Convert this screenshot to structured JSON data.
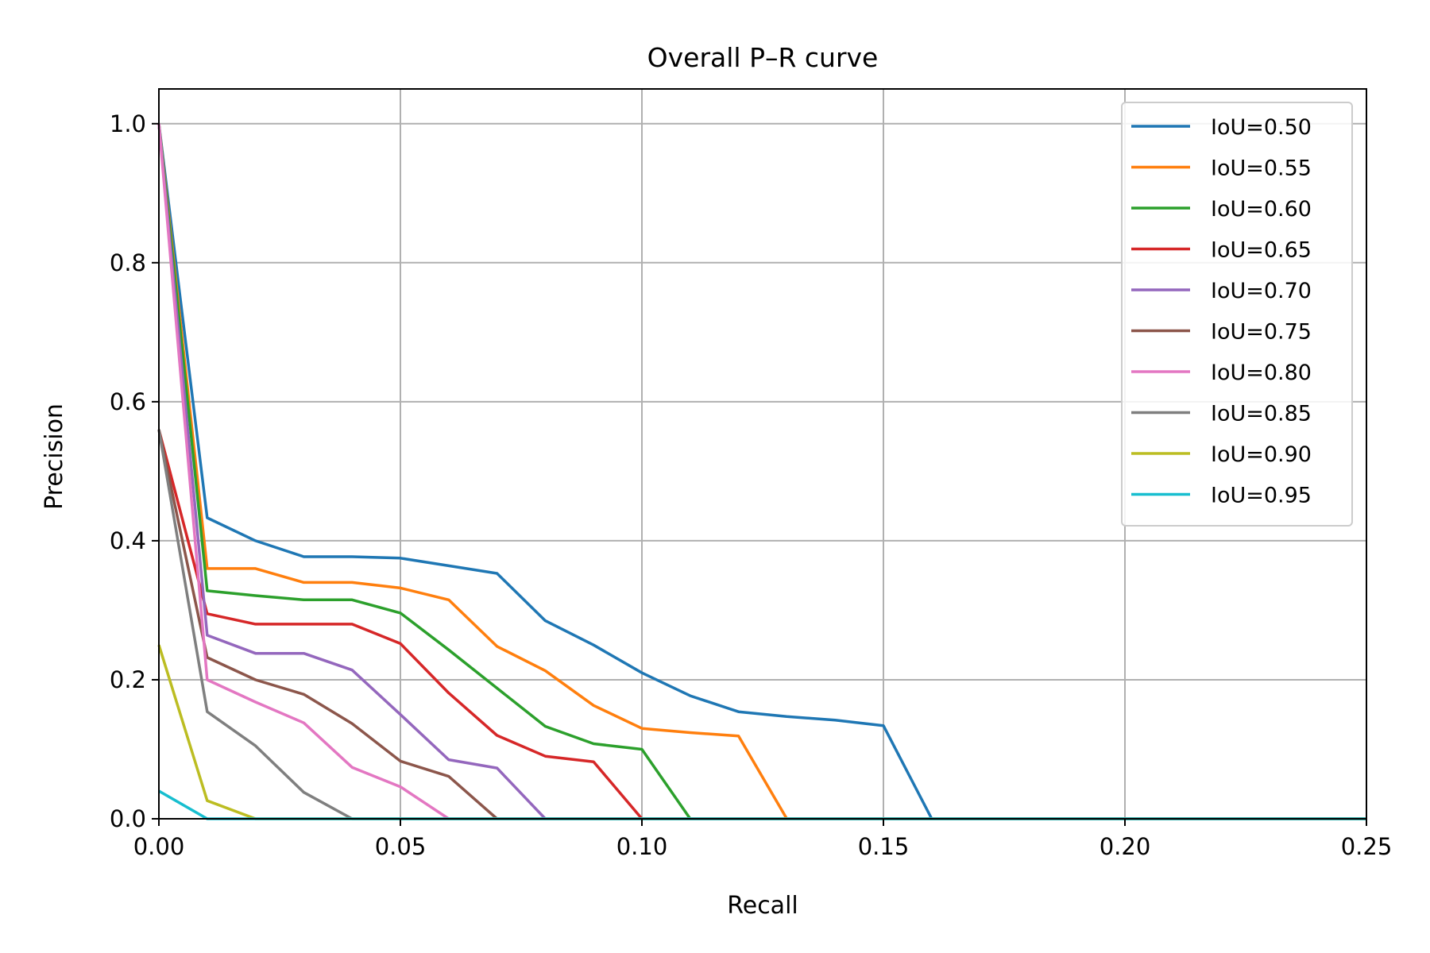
{
  "chart_data": {
    "type": "line",
    "title": "Overall P–R curve",
    "xlabel": "Recall",
    "ylabel": "Precision",
    "xlim": [
      0.0,
      0.25
    ],
    "ylim": [
      0.0,
      1.05
    ],
    "xticks": [
      "0.00",
      "0.05",
      "0.10",
      "0.15",
      "0.20",
      "0.25"
    ],
    "yticks": [
      "0.0",
      "0.2",
      "0.4",
      "0.6",
      "0.8",
      "1.0"
    ],
    "grid": true,
    "legend_position": "top-right",
    "x": [
      0.0,
      0.01,
      0.02,
      0.03,
      0.04,
      0.05,
      0.06,
      0.07,
      0.08,
      0.09,
      0.1,
      0.11,
      0.12,
      0.13,
      0.14,
      0.15,
      0.16,
      0.17,
      0.18,
      0.19,
      0.2,
      0.21,
      0.22,
      0.23,
      0.24,
      0.25
    ],
    "series": [
      {
        "name": "IoU=0.50",
        "color": "#1f77b4",
        "values": [
          1.0,
          0.433,
          0.4,
          0.377,
          0.377,
          0.375,
          0.364,
          0.353,
          0.285,
          0.25,
          0.21,
          0.177,
          0.154,
          0.147,
          0.142,
          0.134,
          0.0,
          0,
          0,
          0,
          0,
          0,
          0,
          0,
          0,
          0
        ]
      },
      {
        "name": "IoU=0.55",
        "color": "#ff7f0e",
        "values": [
          1.0,
          0.36,
          0.36,
          0.34,
          0.34,
          0.332,
          0.315,
          0.248,
          0.213,
          0.163,
          0.13,
          0.124,
          0.119,
          0.0,
          0,
          0,
          0,
          0,
          0,
          0,
          0,
          0,
          0,
          0,
          0,
          0
        ]
      },
      {
        "name": "IoU=0.60",
        "color": "#2ca02c",
        "values": [
          1.0,
          0.328,
          0.321,
          0.315,
          0.315,
          0.296,
          0.243,
          0.188,
          0.133,
          0.108,
          0.1,
          0.0,
          0,
          0,
          0,
          0,
          0,
          0,
          0,
          0,
          0,
          0,
          0,
          0,
          0,
          0
        ]
      },
      {
        "name": "IoU=0.65",
        "color": "#d62728",
        "values": [
          0.56,
          0.295,
          0.28,
          0.28,
          0.28,
          0.252,
          0.181,
          0.12,
          0.09,
          0.082,
          0.0,
          0,
          0,
          0,
          0,
          0,
          0,
          0,
          0,
          0,
          0,
          0,
          0,
          0,
          0,
          0
        ]
      },
      {
        "name": "IoU=0.70",
        "color": "#9467bd",
        "values": [
          1.0,
          0.264,
          0.238,
          0.238,
          0.214,
          0.15,
          0.085,
          0.073,
          0.0,
          0,
          0,
          0,
          0,
          0,
          0,
          0,
          0,
          0,
          0,
          0,
          0,
          0,
          0,
          0,
          0,
          0
        ]
      },
      {
        "name": "IoU=0.75",
        "color": "#8c564b",
        "values": [
          0.56,
          0.232,
          0.2,
          0.179,
          0.137,
          0.083,
          0.061,
          0.0,
          0,
          0,
          0,
          0,
          0,
          0,
          0,
          0,
          0,
          0,
          0,
          0,
          0,
          0,
          0,
          0,
          0,
          0
        ]
      },
      {
        "name": "IoU=0.80",
        "color": "#e377c2",
        "values": [
          1.0,
          0.2,
          0.168,
          0.138,
          0.074,
          0.046,
          0.0,
          0,
          0,
          0,
          0,
          0,
          0,
          0,
          0,
          0,
          0,
          0,
          0,
          0,
          0,
          0,
          0,
          0,
          0,
          0
        ]
      },
      {
        "name": "IoU=0.85",
        "color": "#7f7f7f",
        "values": [
          0.56,
          0.154,
          0.105,
          0.038,
          0.0,
          0,
          0,
          0,
          0,
          0,
          0,
          0,
          0,
          0,
          0,
          0,
          0,
          0,
          0,
          0,
          0,
          0,
          0,
          0,
          0,
          0
        ]
      },
      {
        "name": "IoU=0.90",
        "color": "#bcbd22",
        "values": [
          0.25,
          0.026,
          0.0,
          0,
          0,
          0,
          0,
          0,
          0,
          0,
          0,
          0,
          0,
          0,
          0,
          0,
          0,
          0,
          0,
          0,
          0,
          0,
          0,
          0,
          0,
          0
        ]
      },
      {
        "name": "IoU=0.95",
        "color": "#17becf",
        "values": [
          0.04,
          0.0,
          0,
          0,
          0,
          0,
          0,
          0,
          0,
          0,
          0,
          0,
          0,
          0,
          0,
          0,
          0,
          0,
          0,
          0,
          0,
          0,
          0,
          0,
          0,
          0
        ]
      }
    ]
  }
}
